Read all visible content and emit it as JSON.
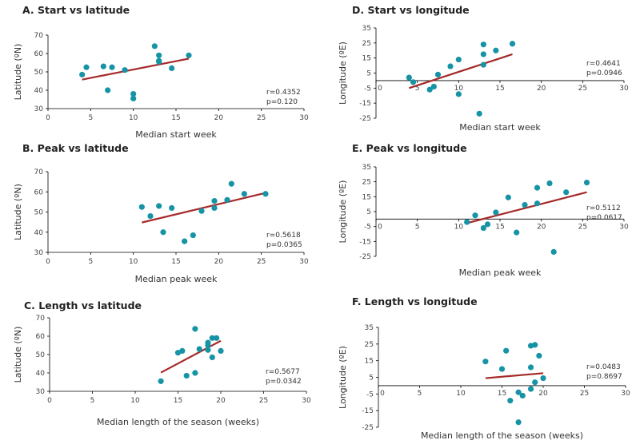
{
  "chart_data": [
    {
      "id": "A",
      "type": "scatter",
      "title": "A. Start vs latitude",
      "xlabel": "Median start week",
      "ylabel": "Latitude (ºN)",
      "xlim": [
        0,
        30
      ],
      "ylim": [
        30,
        70
      ],
      "xticks": [
        0,
        5,
        10,
        15,
        20,
        25,
        30
      ],
      "yticks": [
        30,
        40,
        50,
        60,
        70
      ],
      "points": [
        [
          4,
          48.5
        ],
        [
          4.5,
          52.5
        ],
        [
          6.5,
          53
        ],
        [
          7,
          40
        ],
        [
          7.5,
          52.5
        ],
        [
          9,
          51
        ],
        [
          10,
          38
        ],
        [
          10,
          35.5
        ],
        [
          12.5,
          64
        ],
        [
          13,
          59
        ],
        [
          13,
          56
        ],
        [
          13,
          55.5
        ],
        [
          14.5,
          52
        ],
        [
          16.5,
          59
        ]
      ],
      "fit": [
        [
          4,
          45.8
        ],
        [
          16.5,
          57.2
        ]
      ],
      "r_label": "r=0.4352",
      "p_label": "p=0.120"
    },
    {
      "id": "B",
      "type": "scatter",
      "title": "B. Peak vs latitude",
      "xlabel": "Median peak week",
      "ylabel": "Latitude (ºN)",
      "xlim": [
        0,
        30
      ],
      "ylim": [
        30,
        70
      ],
      "xticks": [
        0,
        5,
        10,
        15,
        20,
        25,
        30
      ],
      "yticks": [
        30,
        40,
        50,
        60,
        70
      ],
      "points": [
        [
          11,
          52.5
        ],
        [
          12,
          48
        ],
        [
          13,
          53
        ],
        [
          13.5,
          40
        ],
        [
          14.5,
          52
        ],
        [
          16,
          35.5
        ],
        [
          17,
          38.5
        ],
        [
          18,
          50.5
        ],
        [
          19.5,
          55.5
        ],
        [
          19.5,
          52
        ],
        [
          21,
          56
        ],
        [
          21.5,
          64
        ],
        [
          23,
          59
        ],
        [
          25.5,
          59
        ]
      ],
      "fit": [
        [
          11,
          44.8
        ],
        [
          25.5,
          59.5
        ]
      ],
      "r_label": "r=0.5618",
      "p_label": "p=0.0365"
    },
    {
      "id": "C",
      "type": "scatter",
      "title": "C. Length vs latitude",
      "xlabel": "Median length of the season (weeks)",
      "ylabel": "Latitude (ºN)",
      "xlim": [
        0,
        30
      ],
      "ylim": [
        30,
        70
      ],
      "xticks": [
        0,
        5,
        10,
        15,
        20,
        25,
        30
      ],
      "yticks": [
        30,
        40,
        50,
        60,
        70
      ],
      "points": [
        [
          13,
          35.5
        ],
        [
          15,
          51
        ],
        [
          15.5,
          52
        ],
        [
          16,
          38.5
        ],
        [
          17,
          40
        ],
        [
          17,
          64
        ],
        [
          17.5,
          53
        ],
        [
          18.5,
          56.5
        ],
        [
          18.5,
          55
        ],
        [
          18.5,
          52.5
        ],
        [
          19,
          59
        ],
        [
          19,
          48.5
        ],
        [
          19.5,
          59
        ],
        [
          20,
          52
        ]
      ],
      "fit": [
        [
          13,
          40.2
        ],
        [
          20,
          57.5
        ]
      ],
      "r_label": "r=0.5677",
      "p_label": "p=0.0342"
    },
    {
      "id": "D",
      "type": "scatter",
      "title": "D. Start vs longitude",
      "xlabel": "Median start week",
      "ylabel": "Longitude (ºE)",
      "xlim": [
        0,
        30
      ],
      "ylim": [
        -25,
        35
      ],
      "xticks": [
        0,
        5,
        10,
        15,
        20,
        25,
        30
      ],
      "yticks": [
        -25,
        -15,
        -5,
        5,
        15,
        25,
        35
      ],
      "points": [
        [
          4,
          2
        ],
        [
          4.5,
          -1
        ],
        [
          6.5,
          -6
        ],
        [
          7,
          -4
        ],
        [
          7.5,
          4
        ],
        [
          9,
          9.5
        ],
        [
          10,
          -9
        ],
        [
          10,
          14
        ],
        [
          12.5,
          -22
        ],
        [
          13,
          24
        ],
        [
          13,
          17.5
        ],
        [
          13,
          10.5
        ],
        [
          14.5,
          20
        ],
        [
          16.5,
          24.5
        ]
      ],
      "fit": [
        [
          4,
          -5
        ],
        [
          16.5,
          17.5
        ]
      ],
      "r_label": "r=0.4641",
      "p_label": "p=0.0946"
    },
    {
      "id": "E",
      "type": "scatter",
      "title": "E. Peak vs longitude",
      "xlabel": "Median peak week",
      "ylabel": "Longitude (ºE)",
      "xlim": [
        0,
        30
      ],
      "ylim": [
        -25,
        35
      ],
      "xticks": [
        0,
        5,
        10,
        15,
        20,
        25,
        30
      ],
      "yticks": [
        -25,
        -15,
        -5,
        5,
        15,
        25,
        35
      ],
      "points": [
        [
          11,
          -2
        ],
        [
          12,
          2.5
        ],
        [
          13,
          -6
        ],
        [
          13.5,
          -3.5
        ],
        [
          14.5,
          4.5
        ],
        [
          16,
          14.5
        ],
        [
          17,
          -9
        ],
        [
          18,
          9.5
        ],
        [
          19.5,
          21
        ],
        [
          19.5,
          10.5
        ],
        [
          21,
          24
        ],
        [
          21.5,
          -22
        ],
        [
          23,
          18
        ],
        [
          25.5,
          24.5
        ]
      ],
      "fit": [
        [
          11,
          -2.7
        ],
        [
          25.5,
          18
        ]
      ],
      "r_label": "r=0.5112",
      "p_label": "p=0.0617"
    },
    {
      "id": "F",
      "type": "scatter",
      "title": "F. Length vs longitude",
      "xlabel": "Median length of the season (weeks)",
      "ylabel": "Longitude (ºE)",
      "xlim": [
        0,
        30
      ],
      "ylim": [
        -25,
        35
      ],
      "xticks": [
        0,
        5,
        10,
        15,
        20,
        25,
        30
      ],
      "yticks": [
        -25,
        -15,
        -5,
        5,
        15,
        25,
        35
      ],
      "points": [
        [
          13,
          14.5
        ],
        [
          15,
          10
        ],
        [
          15.5,
          21
        ],
        [
          16,
          -9
        ],
        [
          17,
          -22
        ],
        [
          17,
          -4
        ],
        [
          17.5,
          -6
        ],
        [
          18.5,
          24
        ],
        [
          18.5,
          11
        ],
        [
          18.5,
          -2
        ],
        [
          19,
          24.5
        ],
        [
          19,
          2
        ],
        [
          19.5,
          18
        ],
        [
          20,
          4.5
        ]
      ],
      "fit": [
        [
          13,
          4.5
        ],
        [
          20,
          7.5
        ]
      ],
      "r_label": "r=0.0483",
      "p_label": "p=0.8697"
    }
  ]
}
